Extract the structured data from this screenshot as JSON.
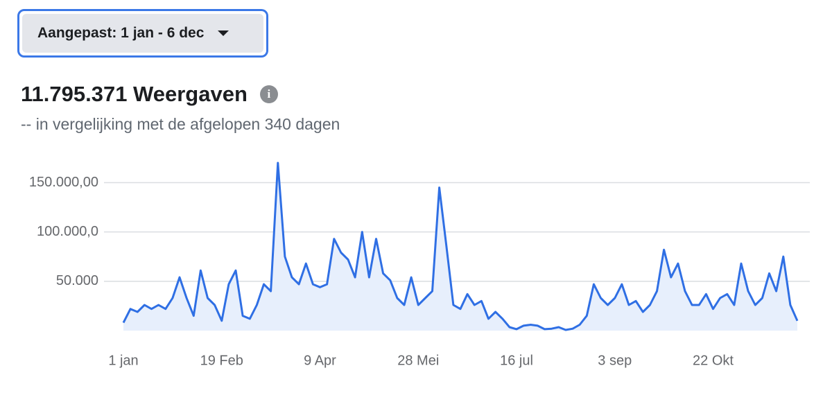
{
  "header": {
    "dropdown": "Aangepast: 1 jan - 6 dec",
    "total": "11.795.371 Weergaven",
    "subtitle": "-- in vergelijking met de afgelopen 340 dagen"
  },
  "chart_data": {
    "type": "area",
    "color": "#2f6fe4",
    "fill": "#e7effc",
    "grid": true,
    "ylim": [
      0,
      170000
    ],
    "yticks": [
      {
        "value": 50000,
        "label": "50.000"
      },
      {
        "value": 100000,
        "label": "100.000,0"
      },
      {
        "value": 150000,
        "label": "150.000,00"
      }
    ],
    "categories": [
      "1 jan",
      null,
      null,
      null,
      null,
      null,
      null,
      null,
      null,
      null,
      null,
      null,
      null,
      null,
      "19 Feb",
      null,
      null,
      null,
      null,
      null,
      null,
      null,
      null,
      null,
      null,
      null,
      null,
      null,
      "9 Apr",
      null,
      null,
      null,
      null,
      null,
      null,
      null,
      null,
      null,
      null,
      null,
      null,
      null,
      "28 Mei",
      null,
      null,
      null,
      null,
      null,
      null,
      null,
      null,
      null,
      null,
      null,
      null,
      null,
      "16 jul",
      null,
      null,
      null,
      null,
      null,
      null,
      null,
      null,
      null,
      null,
      null,
      null,
      null,
      "3 sep",
      null,
      null,
      null,
      null,
      null,
      null,
      null,
      null,
      null,
      null,
      null,
      null,
      null,
      "22 Okt",
      null,
      null,
      null,
      null,
      null,
      null,
      null,
      null,
      null,
      null,
      null,
      null
    ],
    "values": [
      8000,
      22000,
      19000,
      26000,
      22000,
      26000,
      22000,
      33000,
      54000,
      33000,
      15000,
      61000,
      33000,
      26000,
      10000,
      47000,
      61000,
      15000,
      12000,
      26000,
      47000,
      40000,
      170000,
      75000,
      54000,
      47000,
      68000,
      47000,
      44000,
      47000,
      93000,
      79000,
      72000,
      54000,
      100000,
      54000,
      93000,
      58000,
      51000,
      33000,
      26000,
      54000,
      26000,
      33000,
      40000,
      145000,
      86000,
      26000,
      22000,
      37000,
      26000,
      30000,
      12000,
      19000,
      12000,
      3500,
      1500,
      5000,
      6000,
      5000,
      1500,
      2000,
      3500,
      700,
      2000,
      6000,
      15000,
      47000,
      33000,
      26000,
      33000,
      47000,
      26000,
      30000,
      19000,
      26000,
      40000,
      82000,
      54000,
      68000,
      40000,
      26000,
      26000,
      37000,
      22000,
      33000,
      37000,
      26000,
      68000,
      40000,
      26000,
      33000,
      58000,
      40000,
      75000,
      26000,
      10000
    ]
  }
}
